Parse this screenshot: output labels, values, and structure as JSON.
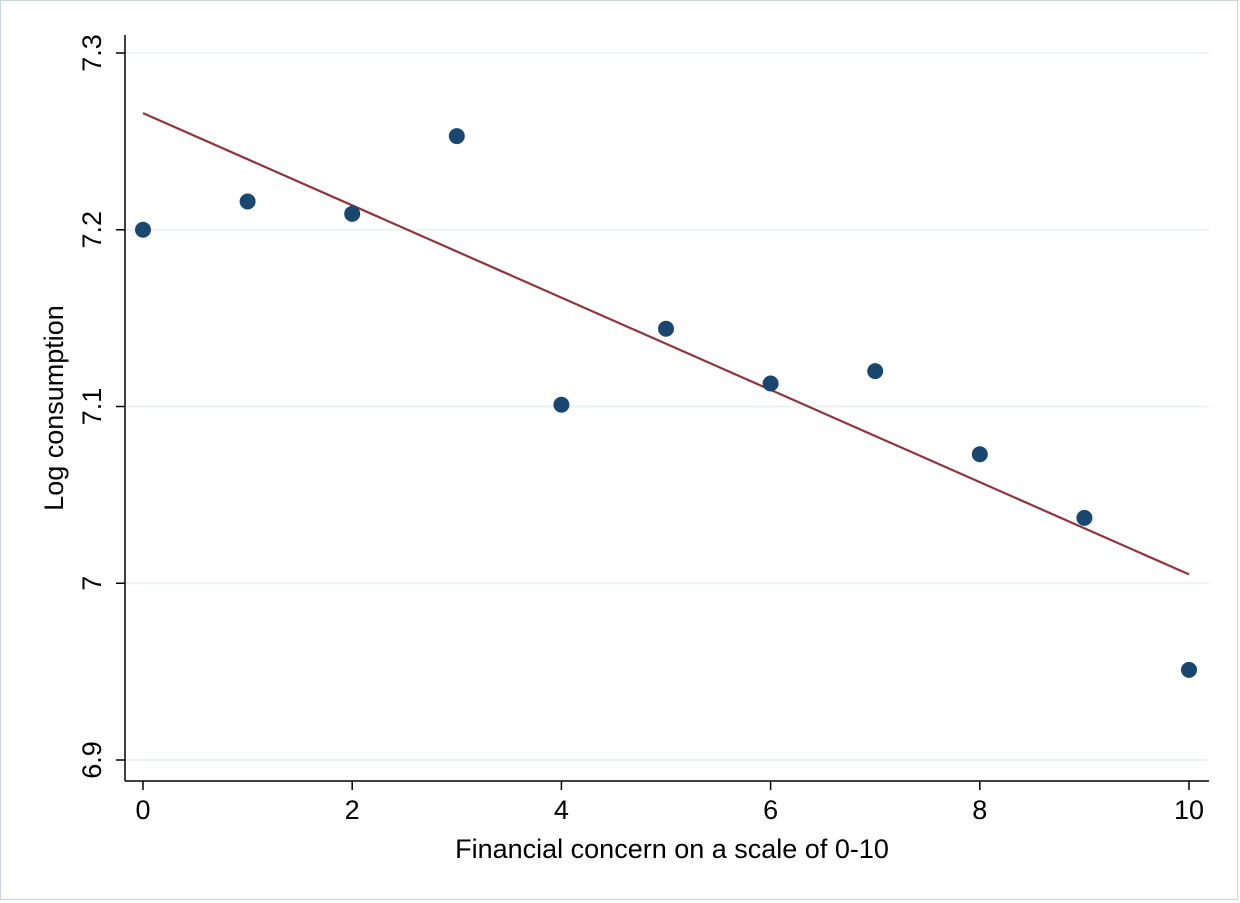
{
  "chart_data": {
    "type": "scatter",
    "title": "",
    "xlabel": "Financial concern on a scale of 0-10",
    "ylabel": "Log consumption",
    "xlim": [
      -0.1,
      10.2
    ],
    "ylim": [
      6.89,
      7.31
    ],
    "xticks": [
      0,
      2,
      4,
      6,
      8,
      10
    ],
    "xtick_labels": [
      "0",
      "2",
      "4",
      "6",
      "8",
      "10"
    ],
    "yticks": [
      6.9,
      7.0,
      7.1,
      7.2,
      7.3
    ],
    "ytick_labels": [
      "6.9",
      "7",
      "7.1",
      "7.2",
      "7.3"
    ],
    "grid": "horizontal",
    "series": [
      {
        "kind": "points",
        "color": "#1a476f",
        "x": [
          0,
          1,
          2,
          3,
          4,
          5,
          6,
          7,
          8,
          9,
          10
        ],
        "y": [
          7.2,
          7.216,
          7.209,
          7.253,
          7.101,
          7.144,
          7.113,
          7.12,
          7.073,
          7.037,
          6.951
        ]
      },
      {
        "kind": "fit-line",
        "color": "#90353b",
        "x": [
          0,
          10
        ],
        "y": [
          7.266,
          7.005
        ]
      }
    ]
  }
}
